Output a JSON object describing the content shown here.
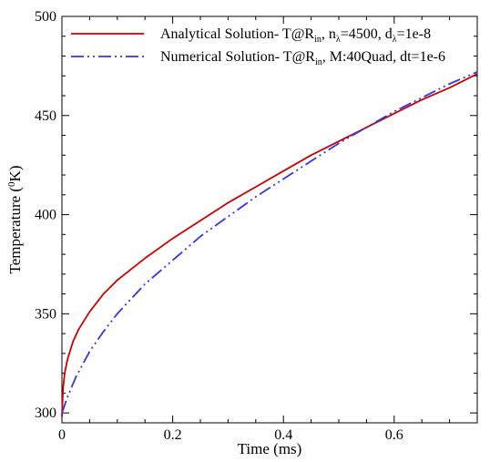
{
  "chart_data": {
    "type": "line",
    "title": "",
    "xlabel": "Time (ms)",
    "ylabel": {
      "pre": "Temperature (",
      "sup": "0",
      "post": "K)"
    },
    "xlim": [
      0,
      0.75
    ],
    "ylim": [
      295,
      500
    ],
    "xticks": [
      {
        "value": 0,
        "label": "0"
      },
      {
        "value": 0.2,
        "label": "0.2"
      },
      {
        "value": 0.4,
        "label": "0.4"
      },
      {
        "value": 0.6,
        "label": "0.6"
      }
    ],
    "yticks": [
      {
        "value": 300,
        "label": "300"
      },
      {
        "value": 350,
        "label": "350"
      },
      {
        "value": 400,
        "label": "400"
      },
      {
        "value": 450,
        "label": "450"
      },
      {
        "value": 500,
        "label": "500"
      }
    ],
    "grid": false,
    "legend_position": "top-right",
    "series": [
      {
        "id": "analytical",
        "color": "#cc0000",
        "dash": "solid",
        "legend": {
          "t1": "Analytical Solution- T@R",
          "s1": "in",
          "t2": ", n",
          "s2": "λ",
          "t3": "=4500, d",
          "s3": "λ",
          "t4": "=1e-8"
        },
        "x": [
          0,
          0.002,
          0.005,
          0.01,
          0.02,
          0.03,
          0.05,
          0.075,
          0.1,
          0.15,
          0.2,
          0.25,
          0.3,
          0.35,
          0.4,
          0.45,
          0.5,
          0.55,
          0.6,
          0.65,
          0.7,
          0.75
        ],
        "y": [
          298,
          312,
          320,
          327,
          336,
          342,
          351,
          360,
          367,
          378,
          388,
          397,
          406,
          414,
          422,
          430,
          437,
          444,
          451,
          458,
          464,
          471
        ]
      },
      {
        "id": "numerical",
        "color": "#3333ee",
        "dash": "dash-dot-dot",
        "legend": {
          "t1": "Numerical Solution- T@R",
          "s1": "in",
          "t2": ", M:40Quad, dt=1e-6",
          "s2": "",
          "t3": "",
          "s3": "",
          "t4": ""
        },
        "x": [
          0,
          0.01,
          0.025,
          0.05,
          0.075,
          0.1,
          0.15,
          0.2,
          0.25,
          0.3,
          0.35,
          0.4,
          0.45,
          0.5,
          0.55,
          0.6,
          0.65,
          0.7,
          0.75
        ],
        "y": [
          300,
          308,
          318,
          331,
          341,
          350,
          365,
          377,
          389,
          399,
          409,
          418,
          427,
          436,
          444,
          452,
          459,
          466,
          472
        ]
      }
    ]
  }
}
